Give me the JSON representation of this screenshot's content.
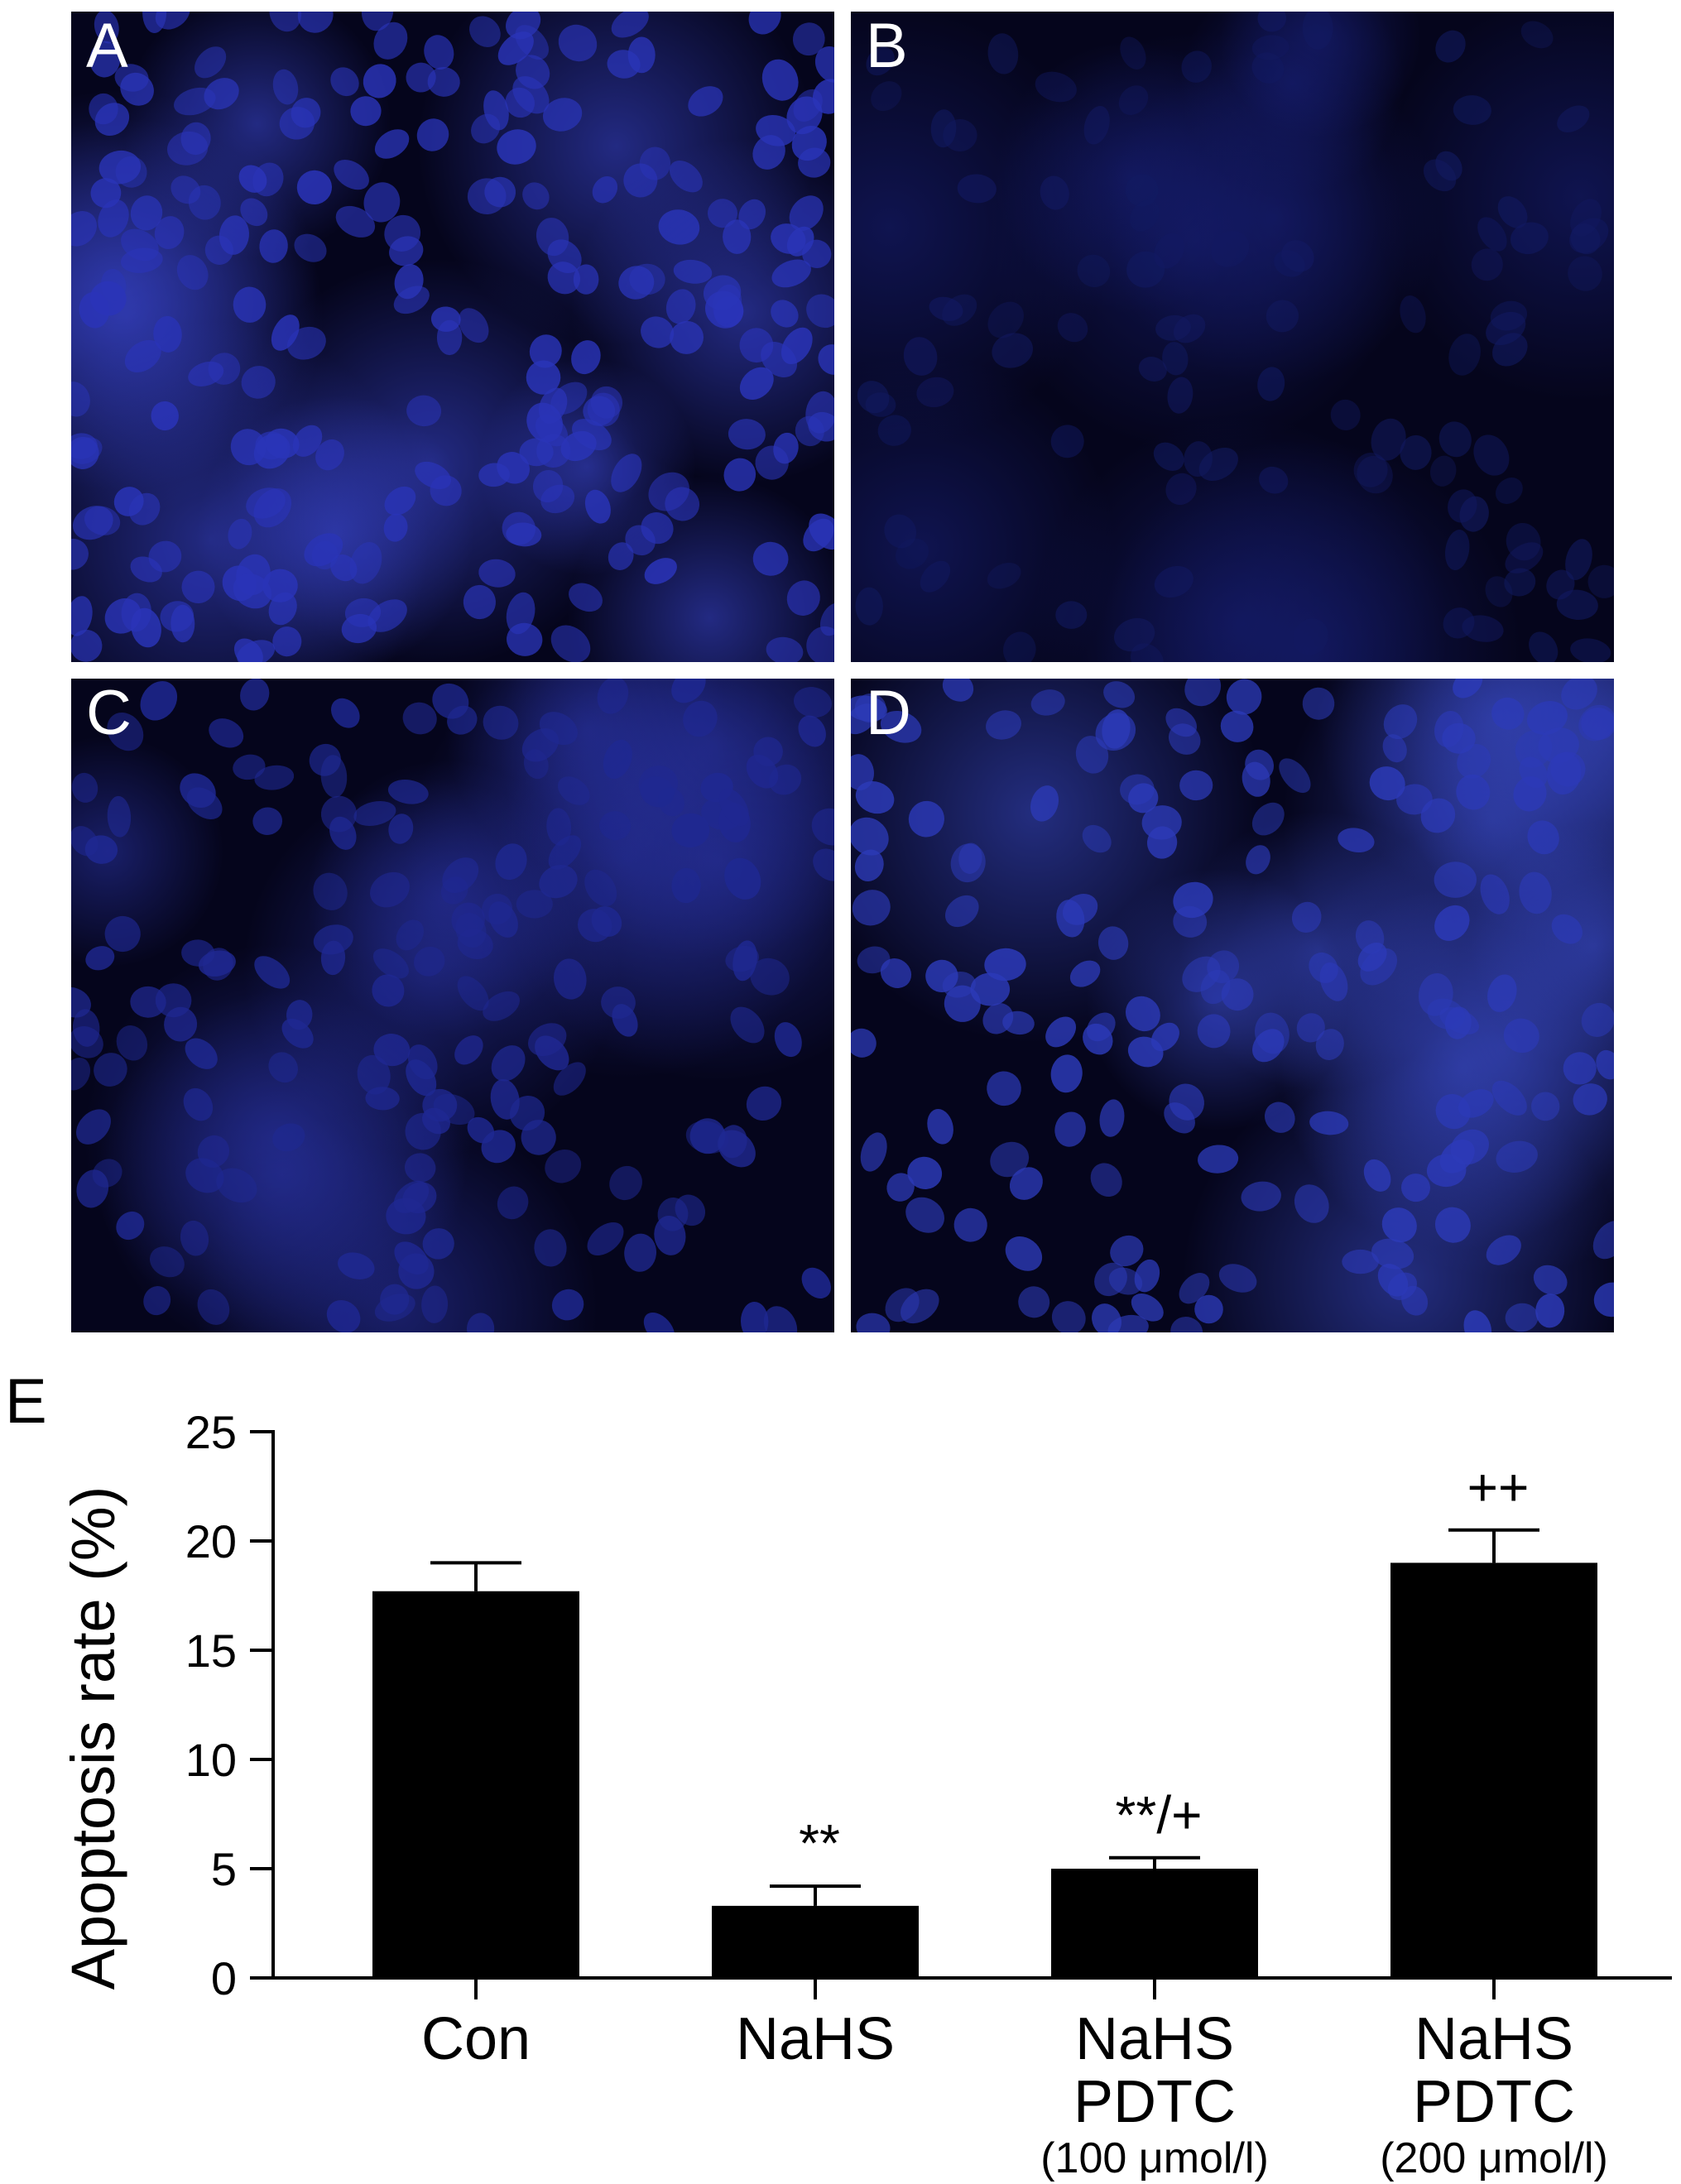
{
  "panels": [
    {
      "letter": "A",
      "tone": "bright",
      "fill": "#2a34b8",
      "glow": "#3b48d6"
    },
    {
      "letter": "B",
      "tone": "dim",
      "fill": "#121a62",
      "glow": "#18207a"
    },
    {
      "letter": "C",
      "tone": "medium",
      "fill": "#1f2892",
      "glow": "#2a34a8"
    },
    {
      "letter": "D",
      "tone": "bright-clustered",
      "fill": "#2c3ab8",
      "glow": "#3c4ed0"
    }
  ],
  "panel_background": "#05051c",
  "chart_data": {
    "type": "bar",
    "panel_letter": "E",
    "categories": [
      {
        "lines": [
          "Con"
        ],
        "note": ""
      },
      {
        "lines": [
          "NaHS"
        ],
        "note": ""
      },
      {
        "lines": [
          "NaHS",
          "PDTC"
        ],
        "note": "(100 μmol/l)"
      },
      {
        "lines": [
          "NaHS",
          "PDTC"
        ],
        "note": "(200 μmol/l)"
      }
    ],
    "values": [
      17.7,
      3.3,
      5.0,
      19.0
    ],
    "errors": [
      1.3,
      0.9,
      0.5,
      1.5
    ],
    "annotations": [
      "",
      "**",
      "**/+",
      "++"
    ],
    "ylabel": "Apoptosis rate (%)",
    "xlabel": "",
    "ylim": [
      0,
      25
    ],
    "yticks": [
      0,
      5,
      10,
      15,
      20,
      25
    ],
    "bar_color": "#000000",
    "grid": false,
    "legend": "none"
  }
}
